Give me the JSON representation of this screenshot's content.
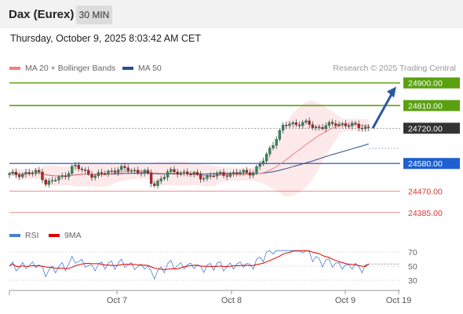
{
  "header": {
    "title": "Dax (Eurex)",
    "timeframe": "30 MIN"
  },
  "timestamp": "Thursday, October 9, 2025 8:03:42 AM CET",
  "legend": {
    "ma20": {
      "label": "MA 20 + Bollinger Bands",
      "color": "#f08080"
    },
    "ma50": {
      "label": "MA 50",
      "color": "#2b4f8e"
    },
    "credit": "Research © 2025 Trading Central",
    "rsi": {
      "label": "RSI",
      "color": "#4a7fd6"
    },
    "rsi_ma": {
      "label": "9MA",
      "color": "#e00000"
    }
  },
  "chart_data": [
    {
      "type": "candlestick",
      "ylim": [
        24350,
        24930
      ],
      "x_ticks": [
        {
          "label": "Oct 7",
          "index": 30
        },
        {
          "label": "Oct 8",
          "index": 62
        },
        {
          "label": "Oct 9",
          "index": 94
        },
        {
          "label": "Oct 19",
          "index": 108
        }
      ],
      "levels": [
        {
          "label": "24900.00",
          "value": 24900,
          "style": "resistance",
          "color": "#5aa010"
        },
        {
          "label": "24810.00",
          "value": 24810,
          "style": "resistance",
          "color": "#5aa010"
        },
        {
          "label": "24720.00",
          "value": 24720,
          "style": "current",
          "color": "#333333"
        },
        {
          "label": "24580.00",
          "value": 24580,
          "style": "pivot",
          "color": "#1f5fd0"
        },
        {
          "label": "24470.00",
          "value": 24470,
          "style": "support",
          "color": "#e03030"
        },
        {
          "label": "24385.00",
          "value": 24385,
          "style": "support",
          "color": "#e03030"
        }
      ],
      "projection": {
        "from_index": 101,
        "from_value": 24720,
        "to_index": 108,
        "to_value": 24885,
        "color": "#2b5aa0"
      }
    },
    {
      "type": "line",
      "ylim": [
        20,
        80
      ],
      "y_ticks": [
        70,
        50,
        30
      ],
      "rsi_last": 52,
      "rsi_ma_last": 53
    }
  ]
}
